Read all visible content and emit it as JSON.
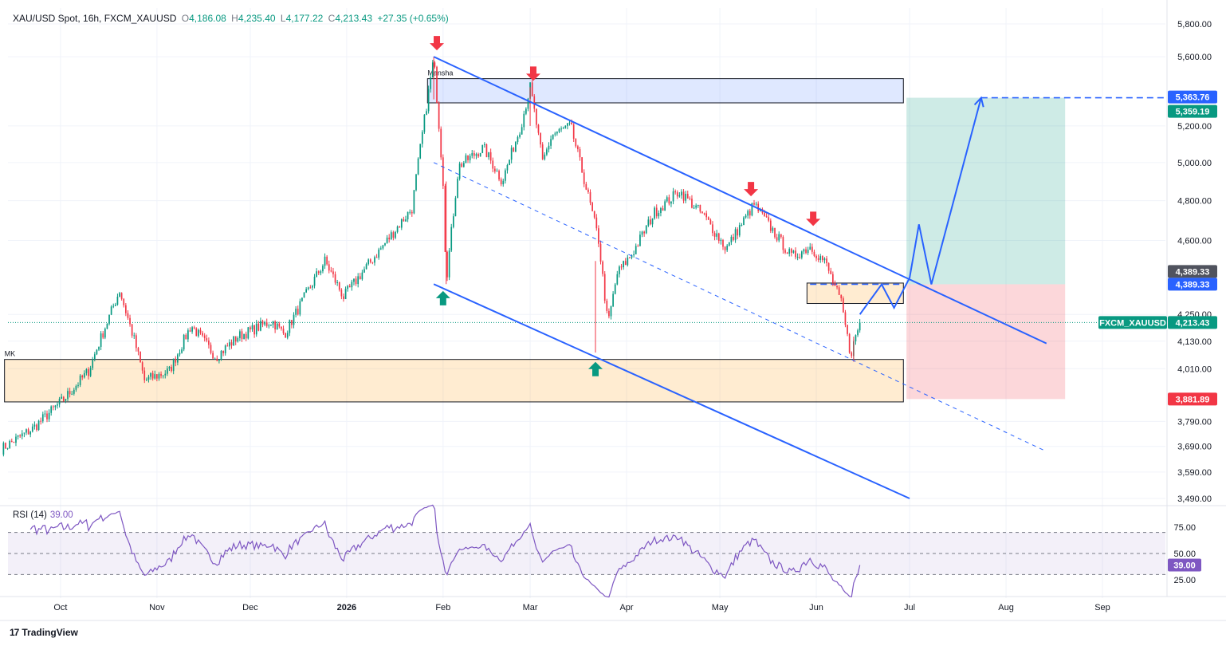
{
  "header": {
    "symbol": "XAU/USD Spot, 16h, FXCM_XAUUSD",
    "open_label": "O",
    "open": "4,186.08",
    "high_label": "H",
    "high": "4,235.40",
    "low_label": "L",
    "low": "4,177.22",
    "close_label": "C",
    "close": "4,213.43",
    "change": "+27.35 (+0.65%)"
  },
  "rsi": {
    "label": "RSI (14)",
    "value": "39.00"
  },
  "branding": {
    "name": "TradingView"
  },
  "colors": {
    "bull": "#089981",
    "bear": "#f23645",
    "channel": "#2962ff",
    "rsi": "#7e57c2"
  },
  "chart_data": {
    "type": "candlestick",
    "x_labels": [
      "Oct",
      "Nov",
      "Dec",
      "2026",
      "Feb",
      "Mar",
      "Apr",
      "May",
      "Jun",
      "Jul",
      "Aug",
      "Sep"
    ],
    "y_ticks": [
      5800,
      5600,
      5200,
      5000,
      4800,
      4600,
      4250,
      4130,
      4010,
      3790,
      3690,
      3590,
      3490
    ],
    "y_tick_labels": [
      "5,800.00",
      "5,600.00",
      "5,200.00",
      "5,000.00",
      "4,800.00",
      "4,600.00",
      "4,250.00",
      "4,130.00",
      "4,010.00",
      "3,790.00",
      "3,690.00",
      "3,590.00",
      "3,490.00"
    ],
    "price_path": [
      [
        "2025-09-12",
        3680
      ],
      [
        "2025-09-22",
        3760
      ],
      [
        "2025-10-02",
        3880
      ],
      [
        "2025-10-10",
        4000
      ],
      [
        "2025-10-20",
        4360
      ],
      [
        "2025-10-25",
        4120
      ],
      [
        "2025-10-28",
        3960
      ],
      [
        "2025-11-05",
        4000
      ],
      [
        "2025-11-12",
        4200
      ],
      [
        "2025-11-20",
        4060
      ],
      [
        "2025-11-27",
        4150
      ],
      [
        "2025-12-08",
        4220
      ],
      [
        "2025-12-12",
        4160
      ],
      [
        "2025-12-25",
        4500
      ],
      [
        "2025-12-31",
        4330
      ],
      [
        "2026-01-12",
        4560
      ],
      [
        "2026-01-22",
        4760
      ],
      [
        "2026-01-29",
        5590
      ],
      [
        "2026-02-01",
        4900
      ],
      [
        "2026-02-02",
        4400
      ],
      [
        "2026-02-06",
        4980
      ],
      [
        "2026-02-14",
        5080
      ],
      [
        "2026-02-20",
        4900
      ],
      [
        "2026-02-26",
        5200
      ],
      [
        "2026-03-01",
        5420
      ],
      [
        "2026-03-05",
        5000
      ],
      [
        "2026-03-08",
        5150
      ],
      [
        "2026-03-14",
        5200
      ],
      [
        "2026-03-20",
        4800
      ],
      [
        "2026-03-23",
        4600
      ],
      [
        "2026-03-26",
        4200
      ],
      [
        "2026-03-29",
        4440
      ],
      [
        "2026-04-03",
        4540
      ],
      [
        "2026-04-10",
        4740
      ],
      [
        "2026-04-18",
        4850
      ],
      [
        "2026-04-26",
        4720
      ],
      [
        "2026-05-03",
        4560
      ],
      [
        "2026-05-12",
        4780
      ],
      [
        "2026-05-18",
        4650
      ],
      [
        "2026-05-24",
        4520
      ],
      [
        "2026-05-30",
        4570
      ],
      [
        "2026-06-04",
        4490
      ],
      [
        "2026-06-09",
        4300
      ],
      [
        "2026-06-12",
        4070
      ],
      [
        "2026-06-15",
        4213.43
      ]
    ],
    "zones": [
      {
        "label": "Mansha",
        "from": "2026-01-27",
        "to": "2026-06-29",
        "low": 5330,
        "high": 5470
      },
      {
        "label": "MK",
        "from": "2025-09-13",
        "to": "2026-06-29",
        "low": 3870,
        "high": 4050
      },
      {
        "label": "",
        "from": "2026-05-29",
        "to": "2026-06-29",
        "low": 4300,
        "high": 4395
      }
    ],
    "channel": {
      "upper": [
        [
          "2026-01-29",
          5600
        ],
        [
          "2026-08-14",
          4120
        ]
      ],
      "lower": [
        [
          "2026-01-29",
          4390
        ],
        [
          "2026-07-01",
          3490
        ]
      ],
      "mid": [
        [
          "2026-01-29",
          5000
        ],
        [
          "2026-08-14",
          3670
        ]
      ]
    },
    "position": {
      "entry": 4389.33,
      "target": 5359.19,
      "stop": 3881.89,
      "from": "2026-06-30",
      "to": "2026-08-20"
    },
    "projection": [
      [
        "2026-06-15",
        4250
      ],
      [
        "2026-06-22",
        4389
      ],
      [
        "2026-06-26",
        4280
      ],
      [
        "2026-07-01",
        4420
      ],
      [
        "2026-07-04",
        4680
      ],
      [
        "2026-07-08",
        4389
      ],
      [
        "2026-07-24",
        5359
      ]
    ],
    "sell_arrows": [
      [
        "2026-01-30",
        5600
      ],
      [
        "2026-03-02",
        5420
      ],
      [
        "2026-05-11",
        4790
      ],
      [
        "2026-05-31",
        4640
      ]
    ],
    "buy_arrows": [
      [
        "2026-02-01",
        4380
      ],
      [
        "2026-03-22",
        4060
      ]
    ],
    "price_labels": [
      {
        "text": "5,363.76",
        "kind": "blue"
      },
      {
        "text": "5,359.19",
        "kind": "green"
      },
      {
        "text": "4,389.33",
        "kind": "gray"
      },
      {
        "text": "4,389.33",
        "kind": "blue"
      },
      {
        "text": "FXCM_XAUUSD",
        "kind": "green-tag"
      },
      {
        "text": "4,213.43",
        "kind": "green"
      },
      {
        "text": "3,881.89",
        "kind": "red"
      }
    ],
    "rsi": {
      "levels": [
        70,
        50,
        30
      ],
      "tick_labels": [
        "75.00",
        "50.00",
        "25.00"
      ],
      "current": 39.0
    }
  }
}
